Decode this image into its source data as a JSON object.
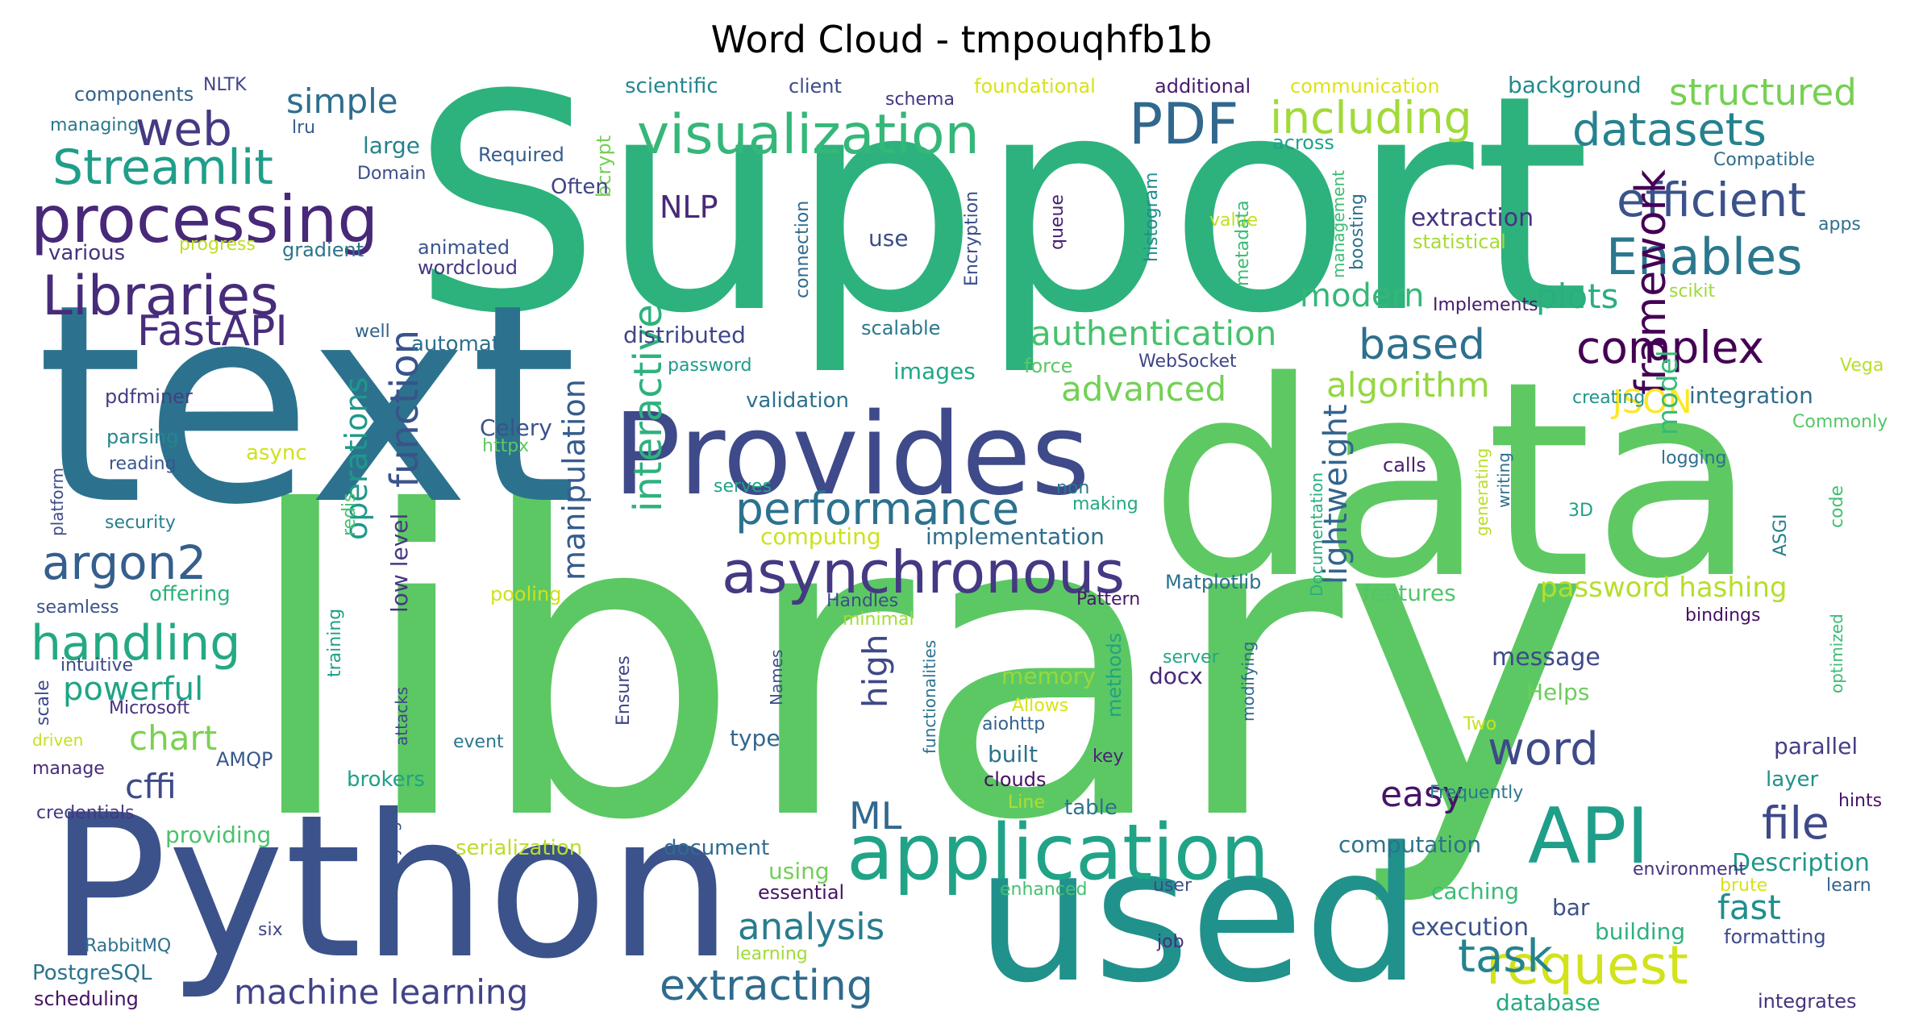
{
  "chart_data": {
    "type": "wordcloud",
    "title": "Word Cloud - tmpouqhfb1b",
    "colormap": "viridis",
    "background": "#ffffff",
    "words": [
      {
        "text": "library",
        "color": "#5cc863"
      },
      {
        "text": "Support",
        "color": "#2db27d"
      },
      {
        "text": "text",
        "color": "#2c728e"
      },
      {
        "text": "data",
        "color": "#5ec962"
      },
      {
        "text": "Python",
        "color": "#3b528b"
      },
      {
        "text": "used",
        "color": "#21918c"
      },
      {
        "text": "Provides",
        "color": "#3e4a89"
      },
      {
        "text": "application",
        "color": "#20a386"
      },
      {
        "text": "visualization",
        "color": "#35b779"
      },
      {
        "text": "processing",
        "color": "#482878"
      },
      {
        "text": "asynchronous",
        "color": "#443983"
      },
      {
        "text": "API",
        "color": "#1f9e89"
      },
      {
        "text": "Streamlit",
        "color": "#1f9e89"
      },
      {
        "text": "Libraries",
        "color": "#472c7a"
      },
      {
        "text": "PDF",
        "color": "#31688e"
      },
      {
        "text": "datasets",
        "color": "#26828e"
      },
      {
        "text": "efficient",
        "color": "#3b528b"
      },
      {
        "text": "Enables",
        "color": "#2a788e"
      },
      {
        "text": "request",
        "color": "#d2e21b"
      },
      {
        "text": "performance",
        "color": "#2c728e"
      },
      {
        "text": "including",
        "color": "#a0da39"
      },
      {
        "text": "structured",
        "color": "#75d054"
      },
      {
        "text": "web",
        "color": "#443a83"
      },
      {
        "text": "handling",
        "color": "#23a983"
      },
      {
        "text": "argon2",
        "color": "#355f8d"
      },
      {
        "text": "framework",
        "color": "#440154"
      },
      {
        "text": "complex",
        "color": "#440154"
      },
      {
        "text": "file",
        "color": "#3e4989"
      },
      {
        "text": "word",
        "color": "#3e4a89"
      },
      {
        "text": "task",
        "color": "#25838e"
      },
      {
        "text": "extracting",
        "color": "#2f6c8e"
      },
      {
        "text": "machine learning",
        "color": "#414487"
      },
      {
        "text": "analysis",
        "color": "#287c8e"
      },
      {
        "text": "function",
        "color": "#3a538b"
      },
      {
        "text": "interactive",
        "color": "#2db27d"
      },
      {
        "text": "manipulation",
        "color": "#365c8d"
      },
      {
        "text": "lightweight",
        "color": "#32658e"
      },
      {
        "text": "operations",
        "color": "#1f988b"
      },
      {
        "text": "FastAPI",
        "color": "#472d7b"
      },
      {
        "text": "based",
        "color": "#2d708e"
      },
      {
        "text": "authentication",
        "color": "#48c16e"
      },
      {
        "text": "algorithm",
        "color": "#93d741"
      },
      {
        "text": "advanced",
        "color": "#73d056"
      },
      {
        "text": "modern",
        "color": "#35b779"
      },
      {
        "text": "plots",
        "color": "#29af7f"
      },
      {
        "text": "JSON",
        "color": "#fde725"
      },
      {
        "text": "simple",
        "color": "#2e6e8e"
      },
      {
        "text": "powerful",
        "color": "#20a386"
      },
      {
        "text": "chart",
        "color": "#7ad151"
      },
      {
        "text": "cffi",
        "color": "#3e4a89"
      },
      {
        "text": "high",
        "color": "#3f4889"
      },
      {
        "text": "ML",
        "color": "#31688e"
      },
      {
        "text": "easy",
        "color": "#481467"
      },
      {
        "text": "fast",
        "color": "#218f8d"
      },
      {
        "text": "model",
        "color": "#38b977"
      },
      {
        "text": "NLP",
        "color": "#482979"
      },
      {
        "text": "password hashing",
        "color": "#b5de2b"
      },
      {
        "text": "extraction",
        "color": "#46327e"
      },
      {
        "text": "statistical",
        "color": "#a8db34"
      },
      {
        "text": "scientific",
        "color": "#24878e"
      },
      {
        "text": "client",
        "color": "#3e4c8a"
      },
      {
        "text": "schema",
        "color": "#453581"
      },
      {
        "text": "foundational",
        "color": "#d8e219"
      },
      {
        "text": "additional",
        "color": "#481b6d"
      },
      {
        "text": "communication",
        "color": "#dde318"
      },
      {
        "text": "background",
        "color": "#23898e"
      },
      {
        "text": "components",
        "color": "#33628d"
      },
      {
        "text": "NLTK",
        "color": "#404588"
      },
      {
        "text": "managing",
        "color": "#2a778e"
      },
      {
        "text": "lru",
        "color": "#365d8d"
      },
      {
        "text": "large",
        "color": "#26828e"
      },
      {
        "text": "Domain",
        "color": "#3c4f8a"
      },
      {
        "text": "Required",
        "color": "#365c8d"
      },
      {
        "text": "bcrypt",
        "color": "#74d055"
      },
      {
        "text": "Often",
        "color": "#414487"
      },
      {
        "text": "across",
        "color": "#1fa188"
      },
      {
        "text": "Compatible",
        "color": "#2f6c8e"
      },
      {
        "text": "value",
        "color": "#c2df23"
      },
      {
        "text": "apps",
        "color": "#2d718e"
      },
      {
        "text": "animated",
        "color": "#3a548c"
      },
      {
        "text": "wordcloud",
        "color": "#443983"
      },
      {
        "text": "various",
        "color": "#46337f"
      },
      {
        "text": "progress",
        "color": "#bddf26"
      },
      {
        "text": "gradient",
        "color": "#2c738e"
      },
      {
        "text": "use",
        "color": "#3d4d8a"
      },
      {
        "text": "connection",
        "color": "#2f6b8e"
      },
      {
        "text": "queue",
        "color": "#482173"
      },
      {
        "text": "Encryption",
        "color": "#3c4f8a"
      },
      {
        "text": "histogram",
        "color": "#228d8d"
      },
      {
        "text": "metadata",
        "color": "#3bbb75"
      },
      {
        "text": "management",
        "color": "#3dbc74"
      },
      {
        "text": "boosting",
        "color": "#2c728e"
      },
      {
        "text": "Implements",
        "color": "#481a6c"
      },
      {
        "text": "scikit",
        "color": "#9dd93b"
      },
      {
        "text": "well",
        "color": "#33638d"
      },
      {
        "text": "automatic",
        "color": "#2e6f8e"
      },
      {
        "text": "distributed",
        "color": "#3f4788"
      },
      {
        "text": "scalable",
        "color": "#29798e"
      },
      {
        "text": "images",
        "color": "#21a685"
      },
      {
        "text": "force",
        "color": "#5ac864"
      },
      {
        "text": "WebSocket",
        "color": "#404688"
      },
      {
        "text": "password",
        "color": "#1f9a8a"
      },
      {
        "text": "Vega",
        "color": "#b8de29"
      },
      {
        "text": "pdfminer",
        "color": "#433e85"
      },
      {
        "text": "validation",
        "color": "#2c718e"
      },
      {
        "text": "creating",
        "color": "#1f948c"
      },
      {
        "text": "integration",
        "color": "#2f6c8e"
      },
      {
        "text": "Commonly",
        "color": "#56c667"
      },
      {
        "text": "Celery",
        "color": "#3b528b"
      },
      {
        "text": "httpx",
        "color": "#5ec962"
      },
      {
        "text": "parsing",
        "color": "#24868e"
      },
      {
        "text": "async",
        "color": "#d0e11c"
      },
      {
        "text": "reading",
        "color": "#39568c"
      },
      {
        "text": "platform",
        "color": "#3e4a89"
      },
      {
        "text": "serves",
        "color": "#20a486"
      },
      {
        "text": "non",
        "color": "#2a768e"
      },
      {
        "text": "making",
        "color": "#22a884"
      },
      {
        "text": "calls",
        "color": "#481d6f"
      },
      {
        "text": "logging",
        "color": "#2e6f8e"
      },
      {
        "text": "generating",
        "color": "#bade28"
      },
      {
        "text": "writing",
        "color": "#2e6e8e"
      },
      {
        "text": "3D",
        "color": "#1fa088"
      },
      {
        "text": "ASGI",
        "color": "#27808e"
      },
      {
        "text": "code",
        "color": "#42be71"
      },
      {
        "text": "security",
        "color": "#27808e"
      },
      {
        "text": "computing",
        "color": "#cde11d"
      },
      {
        "text": "implementation",
        "color": "#2e6d8e"
      },
      {
        "text": "redis",
        "color": "#46c06f"
      },
      {
        "text": "low level",
        "color": "#453882"
      },
      {
        "text": "Matplotlib",
        "color": "#2d718e"
      },
      {
        "text": "Documentation",
        "color": "#29af7f"
      },
      {
        "text": "features",
        "color": "#52c569"
      },
      {
        "text": "seamless",
        "color": "#3b528b"
      },
      {
        "text": "offering",
        "color": "#2db27d"
      },
      {
        "text": "pooling",
        "color": "#d0e11c"
      },
      {
        "text": "Handles",
        "color": "#3d4e8a"
      },
      {
        "text": "Pattern",
        "color": "#481769"
      },
      {
        "text": "minimal",
        "color": "#a5db36"
      },
      {
        "text": "bindings",
        "color": "#471164"
      },
      {
        "text": "optimized",
        "color": "#3bbb75"
      },
      {
        "text": "intuitive",
        "color": "#3e4989"
      },
      {
        "text": "training",
        "color": "#1fa187"
      },
      {
        "text": "attacks",
        "color": "#3f4889"
      },
      {
        "text": "Ensures",
        "color": "#404588"
      },
      {
        "text": "Names",
        "color": "#3b518b"
      },
      {
        "text": "functionalities",
        "color": "#2c738e"
      },
      {
        "text": "methods",
        "color": "#1fa287"
      },
      {
        "text": "memory",
        "color": "#95d840"
      },
      {
        "text": "docx",
        "color": "#482878"
      },
      {
        "text": "server",
        "color": "#22a884"
      },
      {
        "text": "modifying",
        "color": "#31688e"
      },
      {
        "text": "message",
        "color": "#3e4a89"
      },
      {
        "text": "Helps",
        "color": "#6ccd5a"
      },
      {
        "text": "scale",
        "color": "#3e4a89"
      },
      {
        "text": "Microsoft",
        "color": "#46327e"
      },
      {
        "text": "driven",
        "color": "#c8e020"
      },
      {
        "text": "manage",
        "color": "#472c7a"
      },
      {
        "text": "AMQP",
        "color": "#38588c"
      },
      {
        "text": "event",
        "color": "#2a778e"
      },
      {
        "text": "brokers",
        "color": "#1fa188"
      },
      {
        "text": "Allows",
        "color": "#d8e219"
      },
      {
        "text": "aiohttp",
        "color": "#33638d"
      },
      {
        "text": "key",
        "color": "#482475"
      },
      {
        "text": "type",
        "color": "#31678e"
      },
      {
        "text": "built",
        "color": "#2d708e"
      },
      {
        "text": "clouds",
        "color": "#471063"
      },
      {
        "text": "Two",
        "color": "#cae11f"
      },
      {
        "text": "parallel",
        "color": "#433e85"
      },
      {
        "text": "layer",
        "color": "#20928c"
      },
      {
        "text": "hints",
        "color": "#481467"
      },
      {
        "text": "Frequently",
        "color": "#2a788e"
      },
      {
        "text": "Line",
        "color": "#b0dd2f"
      },
      {
        "text": "table",
        "color": "#2c728e"
      },
      {
        "text": "credentials",
        "color": "#453781"
      },
      {
        "text": "providing",
        "color": "#4ac16d"
      },
      {
        "text": "serialization",
        "color": "#bade28"
      },
      {
        "text": "document",
        "color": "#2f6b8e"
      },
      {
        "text": "computation",
        "color": "#2c738e"
      },
      {
        "text": "identifying",
        "color": "#3a548c"
      },
      {
        "text": "using",
        "color": "#71cf57"
      },
      {
        "text": "essential",
        "color": "#471365"
      },
      {
        "text": "enhanced",
        "color": "#44bf70"
      },
      {
        "text": "user",
        "color": "#3e4c8a"
      },
      {
        "text": "caching",
        "color": "#3aba76"
      },
      {
        "text": "Description",
        "color": "#1f968b"
      },
      {
        "text": "environment",
        "color": "#46327e"
      },
      {
        "text": "brute",
        "color": "#d8e219"
      },
      {
        "text": "learn",
        "color": "#33638d"
      },
      {
        "text": "bar",
        "color": "#3b518b"
      },
      {
        "text": "six",
        "color": "#3f4788"
      },
      {
        "text": "RabbitMQ",
        "color": "#2d708e"
      },
      {
        "text": "job",
        "color": "#472e7c"
      },
      {
        "text": "execution",
        "color": "#3b528b"
      },
      {
        "text": "building",
        "color": "#2db27d"
      },
      {
        "text": "formatting",
        "color": "#3e4a89"
      },
      {
        "text": "learning",
        "color": "#a2da37"
      },
      {
        "text": "PostgreSQL",
        "color": "#2c728e"
      },
      {
        "text": "scheduling",
        "color": "#471365"
      },
      {
        "text": "database",
        "color": "#22a884"
      },
      {
        "text": "integrates",
        "color": "#46337f"
      }
    ]
  }
}
